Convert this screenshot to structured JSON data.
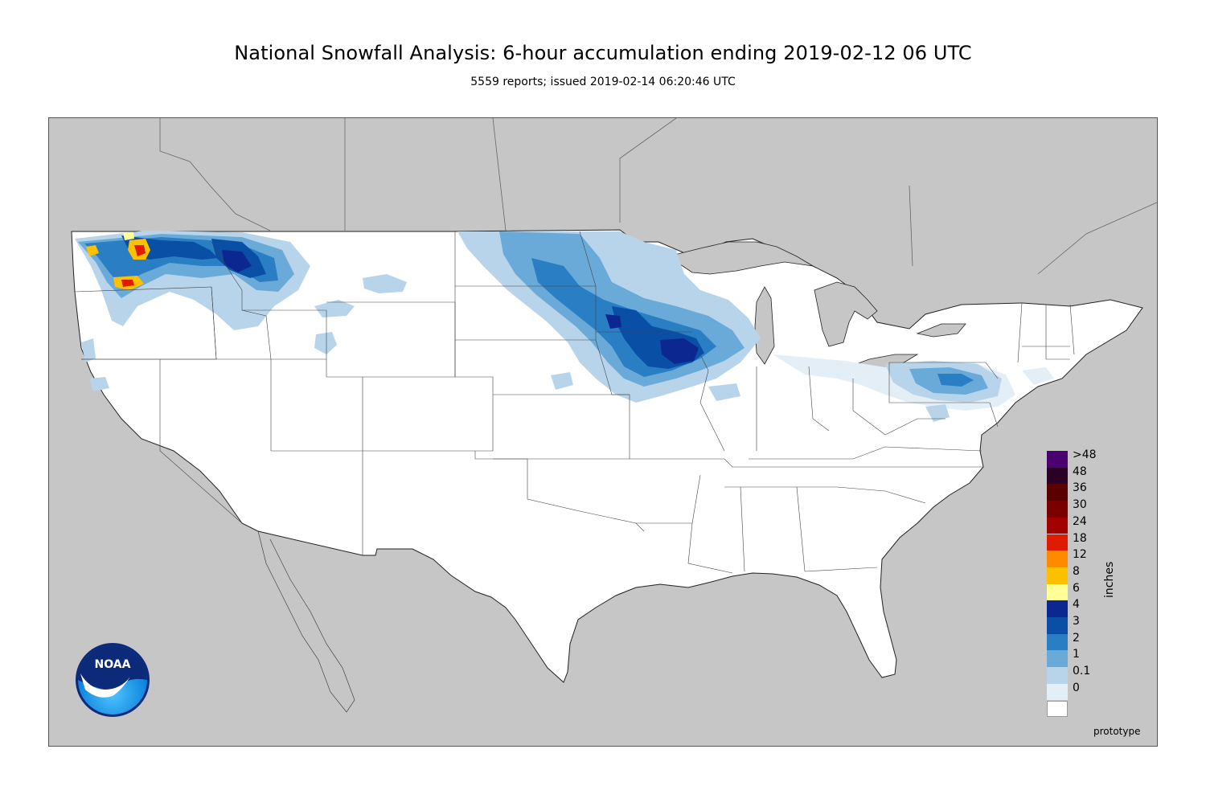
{
  "header": {
    "title": "National Snowfall Analysis: 6-hour accumulation ending 2019-02-12 06 UTC",
    "subtitle": "5559 reports; issued 2019-02-14 06:20:46 UTC"
  },
  "map": {
    "ocean_color": "#c6c6c6",
    "land_color": "#ffffff"
  },
  "legend": {
    "units": "inches",
    "items": [
      {
        "label": ">48",
        "color": "#4b0070"
      },
      {
        "label": "48",
        "color": "#2a0026"
      },
      {
        "label": "36",
        "color": "#5a0000"
      },
      {
        "label": "30",
        "color": "#7a0000"
      },
      {
        "label": "24",
        "color": "#a30000"
      },
      {
        "label": "18",
        "color": "#e01c00"
      },
      {
        "label": "12",
        "color": "#ff8a00"
      },
      {
        "label": "8",
        "color": "#ffc000"
      },
      {
        "label": "6",
        "color": "#ffff96"
      },
      {
        "label": "4",
        "color": "#0c2890"
      },
      {
        "label": "3",
        "color": "#0a4fa6"
      },
      {
        "label": "2",
        "color": "#2a7ec4"
      },
      {
        "label": "1",
        "color": "#6aaad8"
      },
      {
        "label": "0.1",
        "color": "#b8d4ea"
      },
      {
        "label": "0",
        "color": "#e4eef7"
      },
      {
        "label": "",
        "color": "#ffffff"
      }
    ]
  },
  "footer": {
    "prototype_label": "prototype"
  },
  "logo": {
    "text": "NOAA"
  }
}
